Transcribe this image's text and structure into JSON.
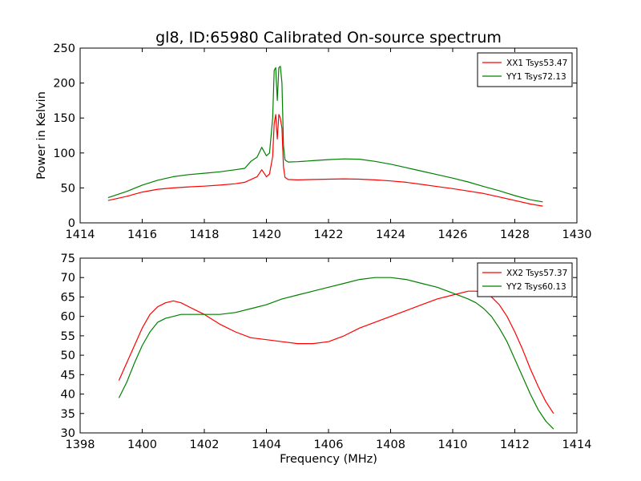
{
  "figure": {
    "title": "gl8, ID:65980 Calibrated On-source spectrum"
  },
  "chart_data": [
    {
      "type": "line",
      "title": "gl8, ID:65980 Calibrated On-source spectrum",
      "xlabel": "",
      "ylabel": "Power in Kelvin",
      "xlim": [
        1414,
        1430
      ],
      "ylim": [
        0,
        250
      ],
      "xticks": [
        1414,
        1416,
        1418,
        1420,
        1422,
        1424,
        1426,
        1428,
        1430
      ],
      "yticks": [
        0,
        50,
        100,
        150,
        200,
        250
      ],
      "grid": false,
      "legend_position": "top-right",
      "series": [
        {
          "name": "XX1 Tsys53.47",
          "color": "#ff0000",
          "x": [
            1414.9,
            1415.5,
            1416.0,
            1416.5,
            1417.0,
            1417.5,
            1418.0,
            1418.5,
            1419.0,
            1419.3,
            1419.5,
            1419.7,
            1419.85,
            1420.0,
            1420.1,
            1420.2,
            1420.25,
            1420.3,
            1420.35,
            1420.4,
            1420.45,
            1420.5,
            1420.55,
            1420.6,
            1420.7,
            1421.0,
            1421.5,
            1422.0,
            1422.5,
            1423.0,
            1423.5,
            1424.0,
            1424.5,
            1425.0,
            1425.5,
            1426.0,
            1426.5,
            1427.0,
            1427.5,
            1428.0,
            1428.5,
            1428.9
          ],
          "values": [
            32,
            38,
            44,
            48,
            50,
            51.5,
            52.5,
            54,
            56,
            58,
            62,
            66,
            76,
            66,
            70,
            95,
            142,
            155,
            120,
            155,
            150,
            135,
            80,
            65,
            62,
            61.5,
            62,
            62.5,
            63,
            62.5,
            61.5,
            60,
            58,
            55,
            52,
            49,
            45.5,
            42,
            37,
            32,
            27,
            24
          ]
        },
        {
          "name": "YY1 Tsys72.13",
          "color": "#008000",
          "x": [
            1414.9,
            1415.5,
            1416.0,
            1416.5,
            1417.0,
            1417.5,
            1418.0,
            1418.5,
            1419.0,
            1419.3,
            1419.5,
            1419.7,
            1419.85,
            1420.0,
            1420.1,
            1420.2,
            1420.25,
            1420.3,
            1420.35,
            1420.4,
            1420.45,
            1420.5,
            1420.55,
            1420.6,
            1420.7,
            1421.0,
            1421.5,
            1422.0,
            1422.5,
            1423.0,
            1423.5,
            1424.0,
            1424.5,
            1425.0,
            1425.5,
            1426.0,
            1426.5,
            1427.0,
            1427.5,
            1428.0,
            1428.5,
            1428.9
          ],
          "values": [
            36,
            45,
            54,
            61,
            66,
            69,
            71,
            73,
            76,
            78,
            88,
            94,
            108,
            96,
            100,
            150,
            218,
            222,
            175,
            222,
            224,
            200,
            110,
            90,
            87,
            87.5,
            89,
            90.5,
            91.5,
            91,
            88,
            84,
            79,
            74,
            69,
            64,
            58.5,
            52,
            46,
            39,
            33,
            30
          ]
        }
      ]
    },
    {
      "type": "line",
      "title": "",
      "xlabel": "Frequency (MHz)",
      "ylabel": "",
      "xlim": [
        1398,
        1414
      ],
      "ylim": [
        30,
        75
      ],
      "xticks": [
        1398,
        1400,
        1402,
        1404,
        1406,
        1408,
        1410,
        1412,
        1414
      ],
      "yticks": [
        30,
        35,
        40,
        45,
        50,
        55,
        60,
        65,
        70,
        75
      ],
      "grid": false,
      "legend_position": "top-right",
      "series": [
        {
          "name": "XX2 Tsys57.37",
          "color": "#ff0000",
          "x": [
            1399.25,
            1399.5,
            1399.75,
            1400.0,
            1400.25,
            1400.5,
            1400.75,
            1401.0,
            1401.25,
            1401.5,
            1401.75,
            1402.0,
            1402.5,
            1403.0,
            1403.5,
            1404.0,
            1404.5,
            1405.0,
            1405.5,
            1406.0,
            1406.5,
            1407.0,
            1407.5,
            1408.0,
            1408.5,
            1409.0,
            1409.5,
            1410.0,
            1410.5,
            1410.75,
            1411.0,
            1411.25,
            1411.5,
            1411.75,
            1412.0,
            1412.25,
            1412.5,
            1412.75,
            1413.0,
            1413.25
          ],
          "values": [
            43.5,
            48,
            52.5,
            57,
            60.5,
            62.5,
            63.5,
            64,
            63.5,
            62.5,
            61.5,
            60.5,
            58,
            56,
            54.5,
            54,
            53.5,
            53,
            53,
            53.5,
            55,
            57,
            58.5,
            60,
            61.5,
            63,
            64.5,
            65.5,
            66.5,
            66.5,
            66,
            65,
            63,
            60,
            56,
            51.5,
            46.5,
            42,
            38,
            35
          ]
        },
        {
          "name": "YY2 Tsys60.13",
          "color": "#008000",
          "x": [
            1399.25,
            1399.5,
            1399.75,
            1400.0,
            1400.25,
            1400.5,
            1400.75,
            1401.0,
            1401.25,
            1401.5,
            1401.75,
            1402.0,
            1402.5,
            1403.0,
            1403.5,
            1404.0,
            1404.5,
            1405.0,
            1405.5,
            1406.0,
            1406.5,
            1407.0,
            1407.5,
            1408.0,
            1408.5,
            1409.0,
            1409.5,
            1410.0,
            1410.5,
            1410.75,
            1411.0,
            1411.25,
            1411.5,
            1411.75,
            1412.0,
            1412.25,
            1412.5,
            1412.75,
            1413.0,
            1413.25
          ],
          "values": [
            39,
            43,
            48,
            52.5,
            56,
            58.5,
            59.5,
            60,
            60.5,
            60.5,
            60.5,
            60.5,
            60.5,
            61,
            62,
            63,
            64.5,
            65.5,
            66.5,
            67.5,
            68.5,
            69.5,
            70,
            70,
            69.5,
            68.5,
            67.5,
            66,
            64.5,
            63.5,
            62,
            60,
            57,
            53.5,
            49,
            44.5,
            40,
            36,
            33,
            31
          ]
        }
      ]
    }
  ]
}
